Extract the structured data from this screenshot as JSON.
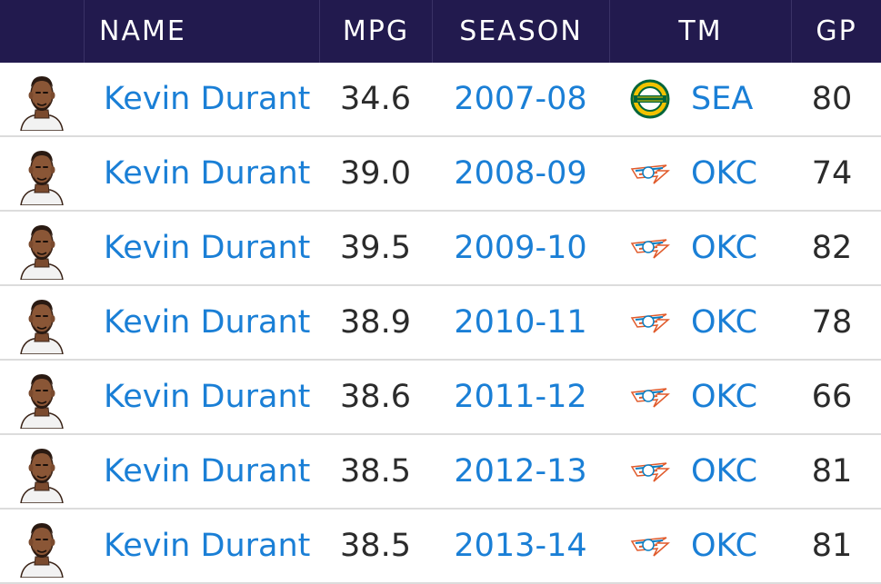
{
  "header": {
    "name": "NAME",
    "mpg": "MPG",
    "season": "SEASON",
    "tm": "TM",
    "gp": "GP"
  },
  "colors": {
    "header_bg": "#221a4e",
    "link": "#1a7fd6",
    "text": "#2b2b2b"
  },
  "rows": [
    {
      "name": "Kevin Durant",
      "mpg": "34.6",
      "season": "2007-08",
      "team": "SEA",
      "logo": "sonics-logo-icon",
      "gp": "80"
    },
    {
      "name": "Kevin Durant",
      "mpg": "39.0",
      "season": "2008-09",
      "team": "OKC",
      "logo": "thunder-logo-icon",
      "gp": "74"
    },
    {
      "name": "Kevin Durant",
      "mpg": "39.5",
      "season": "2009-10",
      "team": "OKC",
      "logo": "thunder-logo-icon",
      "gp": "82"
    },
    {
      "name": "Kevin Durant",
      "mpg": "38.9",
      "season": "2010-11",
      "team": "OKC",
      "logo": "thunder-logo-icon",
      "gp": "78"
    },
    {
      "name": "Kevin Durant",
      "mpg": "38.6",
      "season": "2011-12",
      "team": "OKC",
      "logo": "thunder-logo-icon",
      "gp": "66"
    },
    {
      "name": "Kevin Durant",
      "mpg": "38.5",
      "season": "2012-13",
      "team": "OKC",
      "logo": "thunder-logo-icon",
      "gp": "81"
    },
    {
      "name": "Kevin Durant",
      "mpg": "38.5",
      "season": "2013-14",
      "team": "OKC",
      "logo": "thunder-logo-icon",
      "gp": "81"
    }
  ]
}
